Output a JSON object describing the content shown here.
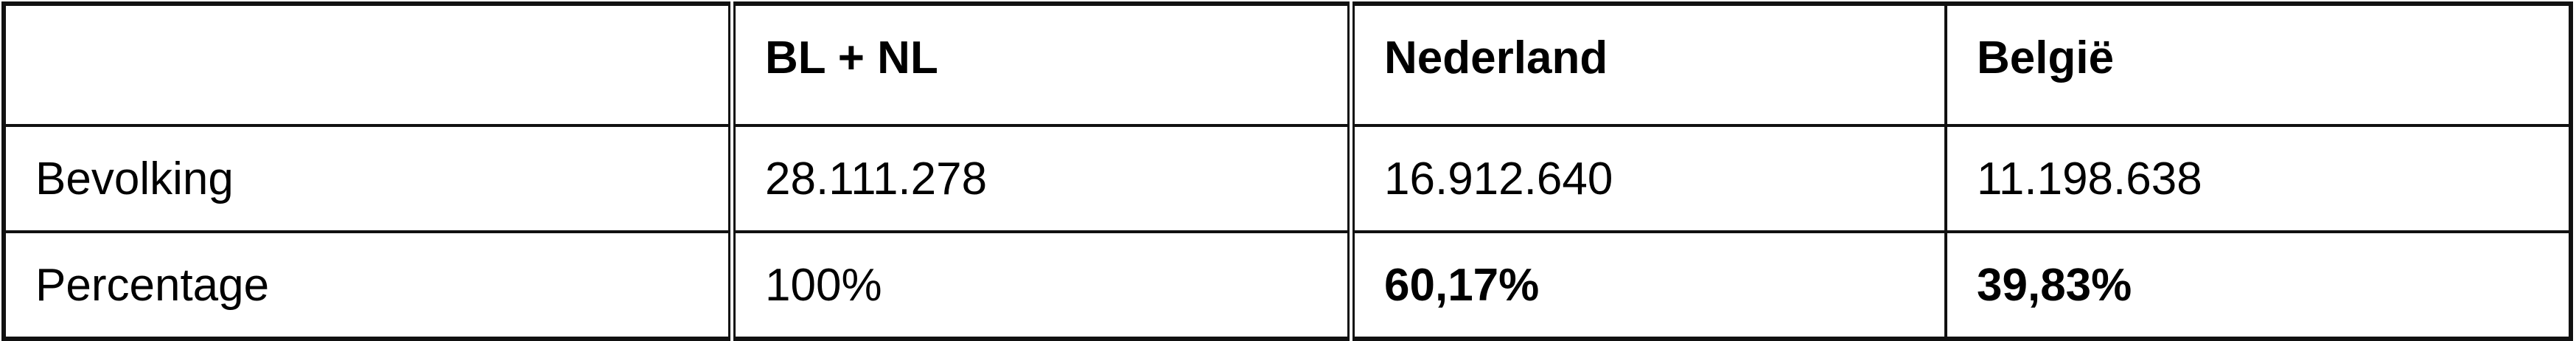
{
  "table": {
    "headers": [
      "",
      "BL + NL",
      "Nederland",
      "België"
    ],
    "rows": [
      {
        "label": "Bevolking",
        "values": [
          "28.111.278",
          "16.912.640",
          "11.198.638"
        ]
      },
      {
        "label": "Percentage",
        "values": [
          "100%",
          "60,17%",
          "39,83%"
        ]
      }
    ]
  }
}
